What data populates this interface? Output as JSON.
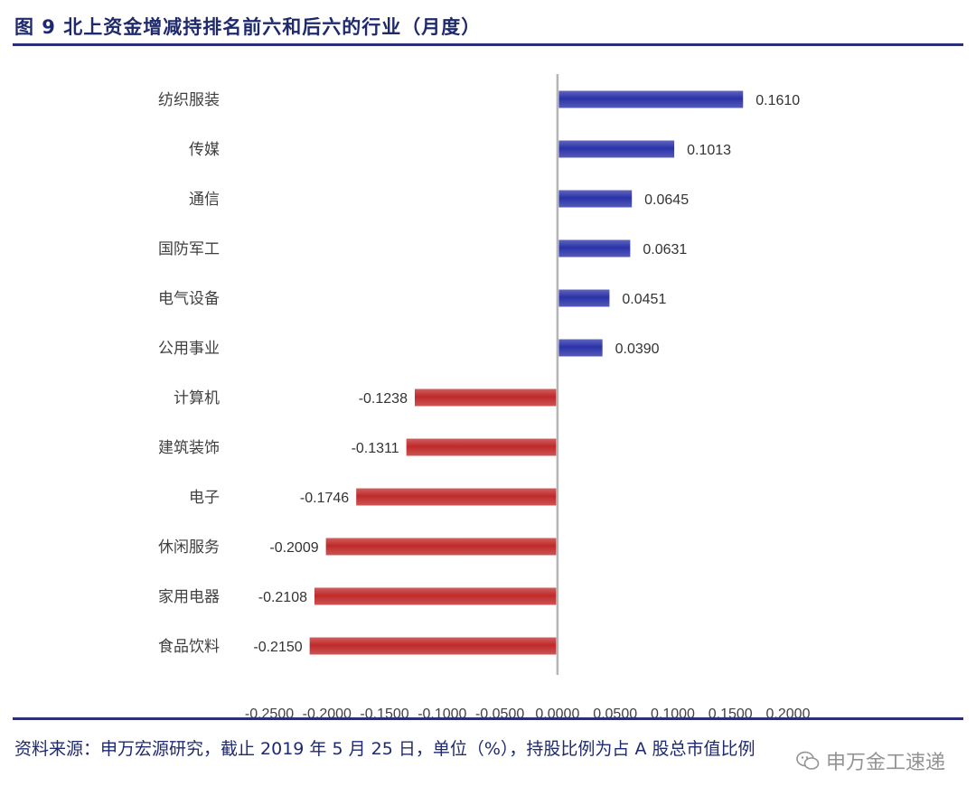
{
  "figure": {
    "title": "图 9  北上资金增减持排名前六和后六的行业（月度）",
    "note": "资料来源：申万宏源研究，截止 2019 年 5 月 25 日，单位（%），持股比例为占 A 股总市值比例",
    "watermark": "申万金工速递"
  },
  "chart_data": {
    "type": "bar",
    "orientation": "horizontal",
    "title": "",
    "xlabel": "",
    "ylabel": "",
    "categories": [
      "纺织服装",
      "传媒",
      "通信",
      "国防军工",
      "电气设备",
      "公用事业",
      "计算机",
      "建筑装饰",
      "电子",
      "休闲服务",
      "家用电器",
      "食品饮料"
    ],
    "values": [
      0.161,
      0.1013,
      0.0645,
      0.0631,
      0.0451,
      0.039,
      -0.1238,
      -0.1311,
      -0.1746,
      -0.2009,
      -0.2108,
      -0.215
    ],
    "value_labels": [
      "0.1610",
      "0.1013",
      "0.0645",
      "0.0631",
      "0.0451",
      "0.0390",
      "-0.1238",
      "-0.1311",
      "-0.1746",
      "-0.2009",
      "-0.2108",
      "-0.2150"
    ],
    "xlim": [
      -0.25,
      0.2
    ],
    "xticks": [
      "-0.2500",
      "-0.2000",
      "-0.1500",
      "-0.1000",
      "-0.0500",
      "0.0000",
      "0.0500",
      "0.1000",
      "0.1500",
      "0.2000"
    ],
    "colors": {
      "positive": "#2b32a8",
      "negative": "#bf2a2a"
    },
    "grid": false,
    "legend": "none"
  }
}
